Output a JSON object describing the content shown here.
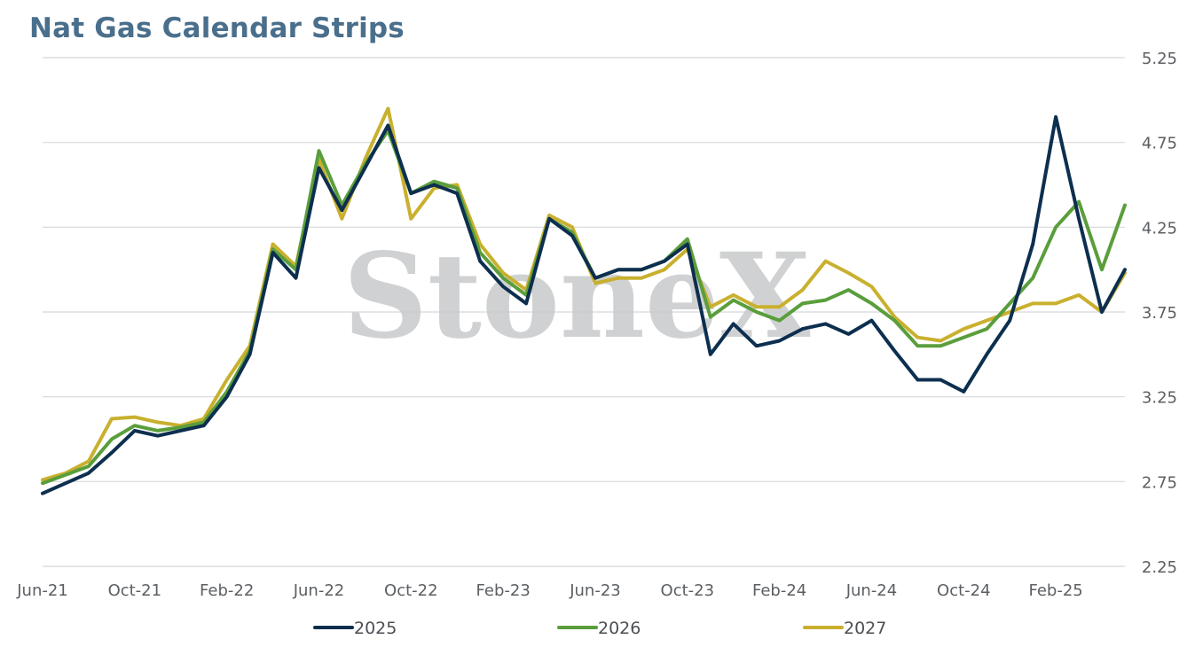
{
  "chart_data": {
    "type": "line",
    "title": "Nat Gas Calendar Strips",
    "xlabel": "",
    "ylabel": "",
    "ylim": [
      2.25,
      5.25
    ],
    "yticks": [
      "2.25",
      "2.75",
      "3.25",
      "3.75",
      "4.25",
      "4.75",
      "5.25"
    ],
    "y_axis_position": "right",
    "grid": "horizontal",
    "legend_position": "bottom",
    "watermark": "StoneX",
    "xtick_labels": [
      "Jun-21",
      "Oct-21",
      "Feb-22",
      "Jun-22",
      "Oct-22",
      "Feb-23",
      "Jun-23",
      "Oct-23",
      "Feb-24",
      "Jun-24",
      "Oct-24",
      "Feb-25"
    ],
    "x": [
      "Jun-21",
      "Jul-21",
      "Aug-21",
      "Sep-21",
      "Oct-21",
      "Nov-21",
      "Dec-21",
      "Jan-22",
      "Feb-22",
      "Mar-22",
      "Apr-22",
      "May-22",
      "Jun-22",
      "Jul-22",
      "Aug-22",
      "Sep-22",
      "Oct-22",
      "Nov-22",
      "Dec-22",
      "Jan-23",
      "Feb-23",
      "Mar-23",
      "Apr-23",
      "May-23",
      "Jun-23",
      "Jul-23",
      "Aug-23",
      "Sep-23",
      "Oct-23",
      "Nov-23",
      "Dec-23",
      "Jan-24",
      "Feb-24",
      "Mar-24",
      "Apr-24",
      "May-24",
      "Jun-24",
      "Jul-24",
      "Aug-24",
      "Sep-24",
      "Oct-24",
      "Nov-24",
      "Dec-24",
      "Jan-25",
      "Feb-25",
      "Mar-25",
      "Apr-25",
      "May-25"
    ],
    "series": [
      {
        "name": "2025",
        "color": "#0d2f4f",
        "values": [
          2.68,
          2.74,
          2.8,
          2.92,
          3.05,
          3.02,
          3.05,
          3.08,
          3.25,
          3.5,
          4.1,
          3.95,
          4.6,
          4.35,
          4.6,
          4.85,
          4.45,
          4.5,
          4.45,
          4.05,
          3.9,
          3.8,
          4.3,
          4.2,
          3.95,
          4.0,
          4.0,
          4.05,
          4.15,
          3.5,
          3.68,
          3.55,
          3.58,
          3.65,
          3.68,
          3.62,
          3.7,
          3.52,
          3.35,
          3.35,
          3.28,
          3.5,
          3.7,
          4.15,
          4.9,
          4.3,
          3.75,
          4.0
        ]
      },
      {
        "name": "2026",
        "color": "#5a9e3c",
        "values": [
          2.74,
          2.79,
          2.84,
          3.0,
          3.08,
          3.05,
          3.07,
          3.1,
          3.28,
          3.52,
          4.12,
          4.0,
          4.7,
          4.38,
          4.62,
          4.82,
          4.45,
          4.52,
          4.48,
          4.1,
          3.95,
          3.85,
          4.3,
          4.22,
          3.95,
          4.0,
          4.0,
          4.05,
          4.18,
          3.72,
          3.82,
          3.75,
          3.7,
          3.8,
          3.82,
          3.88,
          3.8,
          3.7,
          3.55,
          3.55,
          3.6,
          3.65,
          3.8,
          3.95,
          4.25,
          4.4,
          4.0,
          4.38
        ]
      },
      {
        "name": "2027",
        "color": "#c9b02e",
        "values": [
          2.76,
          2.8,
          2.87,
          3.12,
          3.13,
          3.1,
          3.08,
          3.12,
          3.35,
          3.55,
          4.15,
          4.02,
          4.65,
          4.3,
          4.65,
          4.95,
          4.3,
          4.48,
          4.5,
          4.15,
          3.98,
          3.88,
          4.32,
          4.25,
          3.92,
          3.95,
          3.95,
          4.0,
          4.12,
          3.78,
          3.85,
          3.78,
          3.78,
          3.88,
          4.05,
          3.98,
          3.9,
          3.72,
          3.6,
          3.58,
          3.65,
          3.7,
          3.75,
          3.8,
          3.8,
          3.85,
          3.75,
          3.98
        ]
      }
    ]
  }
}
